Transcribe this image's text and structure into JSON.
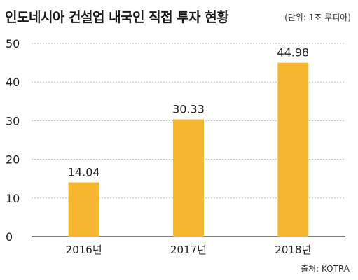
{
  "title": "인도네시아 건설업 내국인 직접 투자 현황",
  "unit": "(단위: 1조 루피아)",
  "source": "출처: KOTRA",
  "colors": {
    "bar": "#F5B52E",
    "grid": "#bdbdbd",
    "axis": "#333333"
  },
  "chart_data": {
    "type": "bar",
    "title": "인도네시아 건설업 내국인 직접 투자 현황",
    "categories": [
      "2016년",
      "2017년",
      "2018년"
    ],
    "values": [
      14.04,
      30.33,
      44.98
    ],
    "data_labels": [
      "14.04",
      "30.33",
      "44.98"
    ],
    "xlabel": "",
    "ylabel": "",
    "ylim": [
      0,
      50
    ],
    "yticks": [
      0,
      10,
      20,
      30,
      40,
      50
    ],
    "grid": true,
    "legend": "none"
  }
}
